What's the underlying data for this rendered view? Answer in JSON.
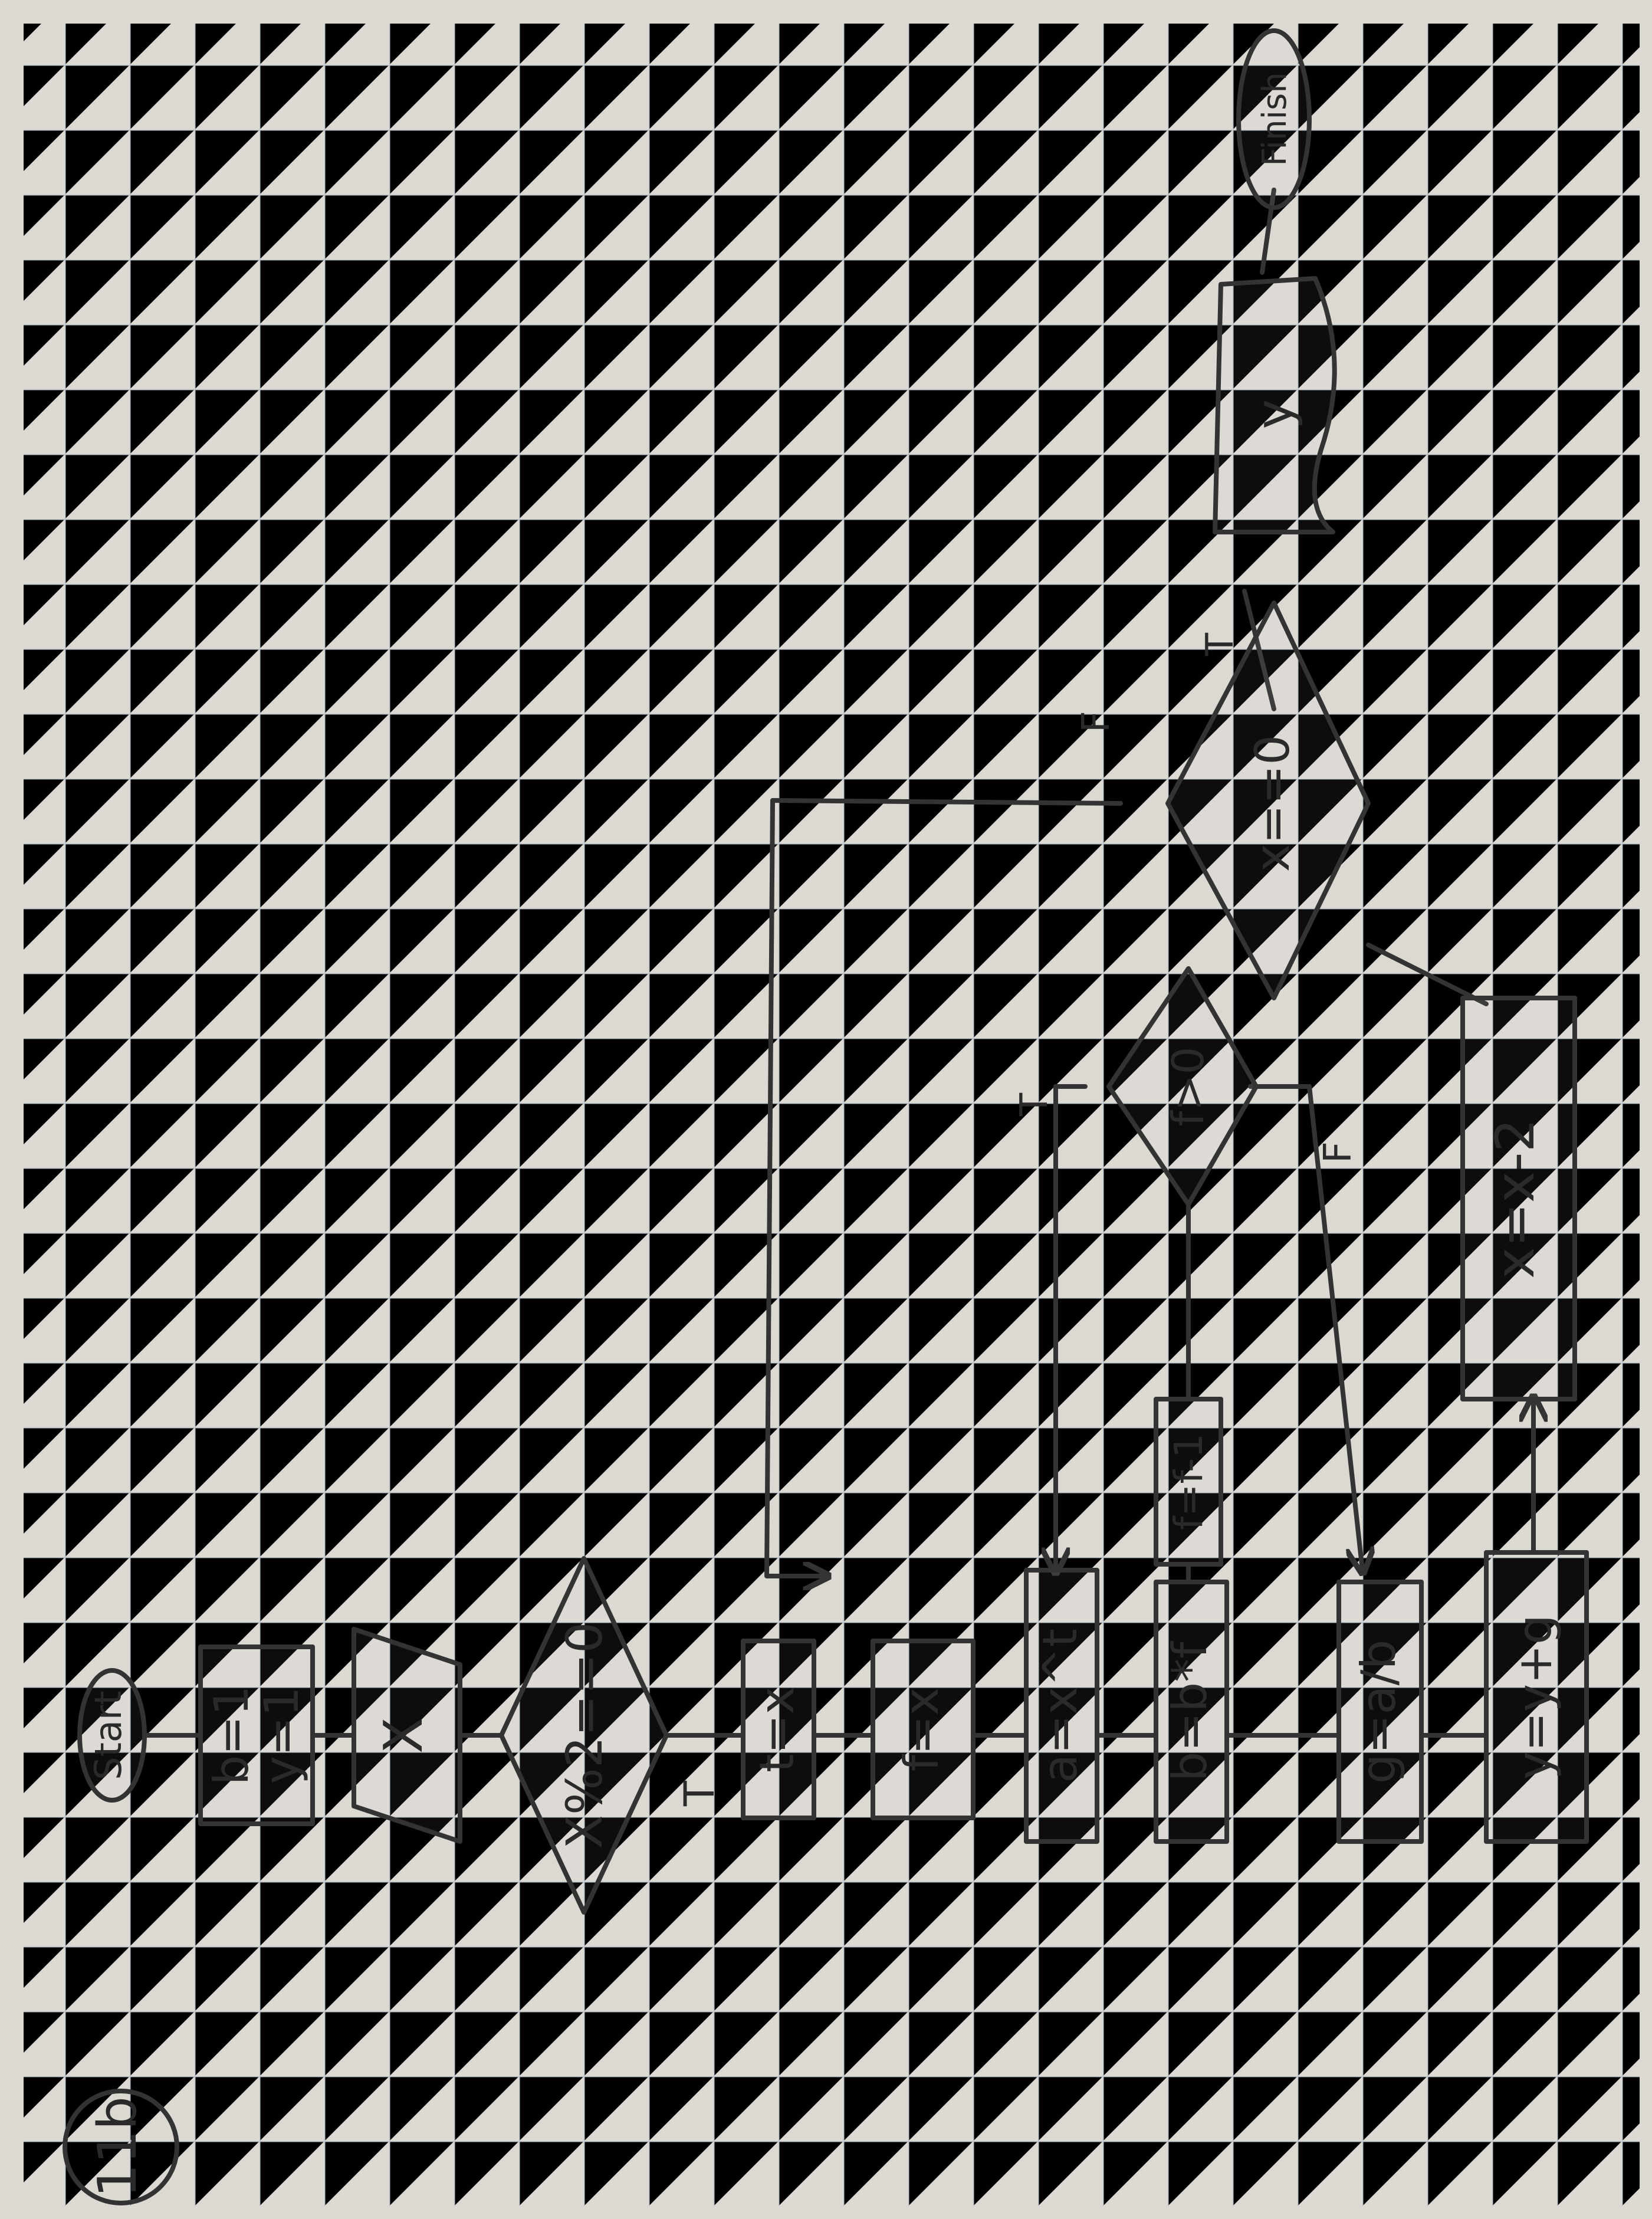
{
  "page_label": "11b",
  "nodes": {
    "start": "Start",
    "init": [
      "b=1",
      "y=1"
    ],
    "input": "X",
    "cond_even": "X%2==0",
    "assign_t": "t=x",
    "assign_f": "f=x",
    "assign_a": "a=x^t",
    "assign_b": "b=b*f",
    "dec_f": "f=f-1",
    "cond_f": "f>0",
    "assign_g": "g=a/b",
    "assign_y": "y=y+g",
    "dec_x": "x=x-2",
    "cond_x": "x==0",
    "output": "y",
    "finish": "Finish"
  },
  "edge_labels": {
    "even_true": "T",
    "f_true": "T",
    "f_false": "F",
    "x_true": "T",
    "x_false": "F"
  },
  "colors": {
    "paper": "#d9d6d0",
    "grid": "#b9c3c9",
    "ink": "#2a2a2a"
  }
}
